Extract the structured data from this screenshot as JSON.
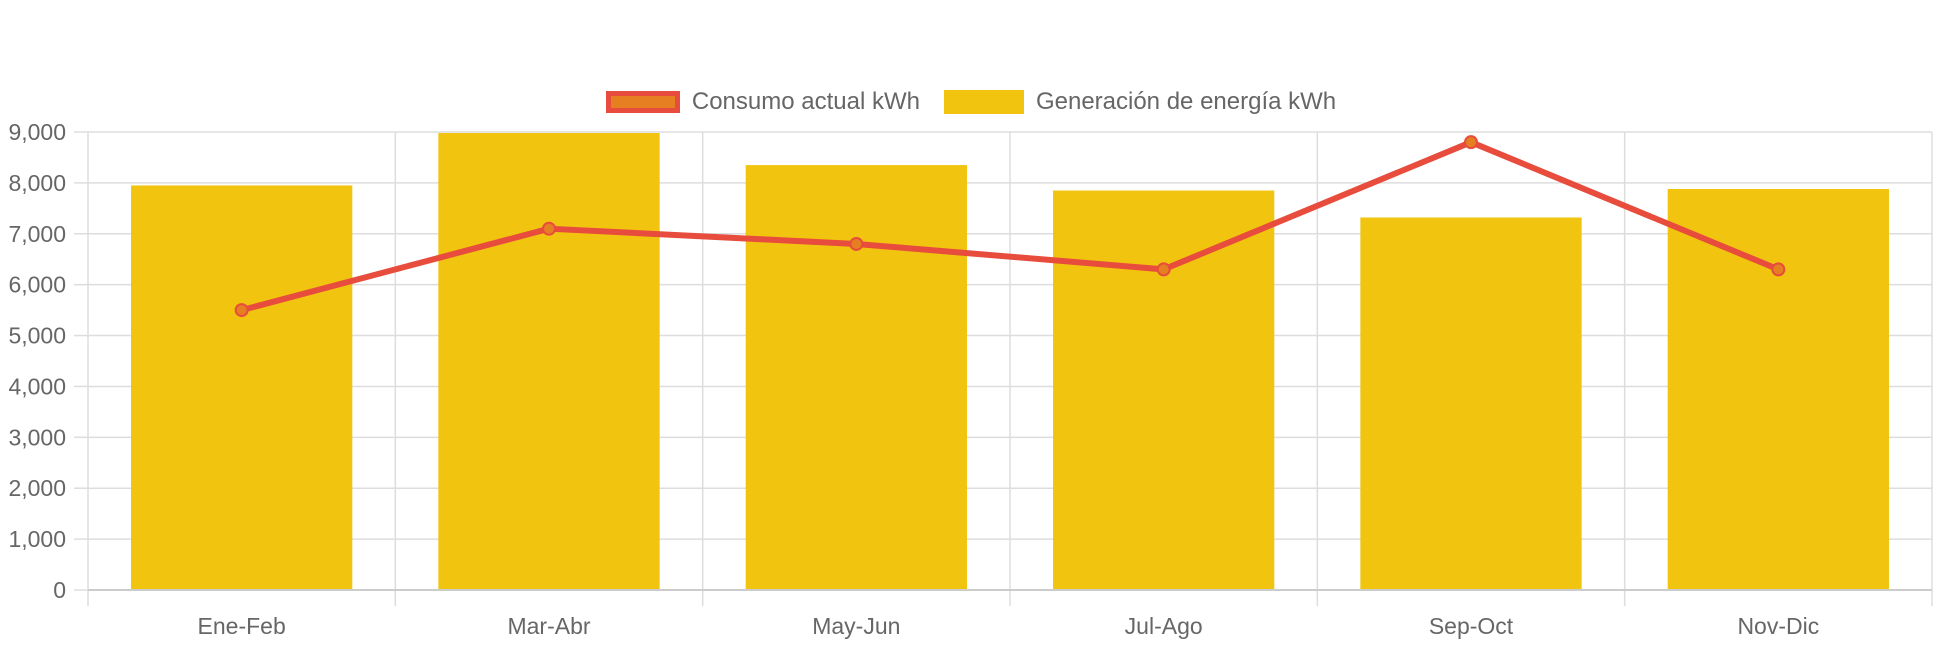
{
  "chart_data": {
    "type": "bar",
    "title": "",
    "xlabel": "",
    "ylabel": "",
    "categories": [
      "Ene-Feb",
      "Mar-Abr",
      "May-Jun",
      "Jul-Ago",
      "Sep-Oct",
      "Nov-Dic"
    ],
    "series": [
      {
        "name": "Consumo actual kWh",
        "type": "line",
        "values": [
          5500,
          7100,
          6800,
          6300,
          8800,
          6300
        ]
      },
      {
        "name": "Generación de energía kWh",
        "type": "bar",
        "values": [
          7950,
          8980,
          8350,
          7850,
          7320,
          7880
        ]
      }
    ],
    "ylim": [
      0,
      9000
    ],
    "yticks": [
      "0",
      "1,000",
      "2,000",
      "3,000",
      "4,000",
      "5,000",
      "6,000",
      "7,000",
      "8,000",
      "9,000"
    ],
    "grid": true,
    "legend_position": "top",
    "colors": {
      "line": "#e74c3c",
      "point_fill": "#e67e22",
      "bar": "#f1c40f",
      "grid": "#dddddd",
      "text": "#666666"
    }
  }
}
